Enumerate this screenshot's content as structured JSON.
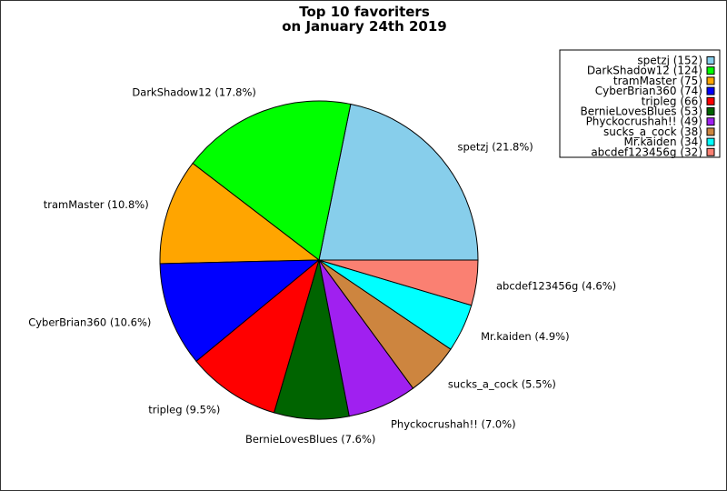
{
  "chart_data": {
    "type": "pie",
    "title": [
      "Top 10 favoriters",
      "on January 24th 2019"
    ],
    "legend_placement": "top-right",
    "slices": [
      {
        "name": "spetzj",
        "value": 152,
        "percent": 21.8,
        "color": "#87ceeb",
        "label": "spetzj (21.8%)",
        "legend": "spetzj (152)"
      },
      {
        "name": "DarkShadow12",
        "value": 124,
        "percent": 17.8,
        "color": "#00ff00",
        "label": "DarkShadow12 (17.8%)",
        "legend": "DarkShadow12 (124)"
      },
      {
        "name": "tramMaster",
        "value": 75,
        "percent": 10.8,
        "color": "#ffa500",
        "label": "tramMaster (10.8%)",
        "legend": "tramMaster (75)"
      },
      {
        "name": "CyberBrian360",
        "value": 74,
        "percent": 10.6,
        "color": "#0000ff",
        "label": "CyberBrian360 (10.6%)",
        "legend": "CyberBrian360 (74)"
      },
      {
        "name": "tripleg",
        "value": 66,
        "percent": 9.5,
        "color": "#ff0000",
        "label": "tripleg (9.5%)",
        "legend": "tripleg (66)"
      },
      {
        "name": "BernieLovesBlues",
        "value": 53,
        "percent": 7.6,
        "color": "#006400",
        "label": "BernieLovesBlues (7.6%)",
        "legend": "BernieLovesBlues (53)"
      },
      {
        "name": "Phyckocrushah!!",
        "value": 49,
        "percent": 7.0,
        "color": "#a020f0",
        "label": "Phyckocrushah!! (7.0%)",
        "legend": "Phyckocrushah!! (49)"
      },
      {
        "name": "sucks_a_cock",
        "value": 38,
        "percent": 5.5,
        "color": "#cd853f",
        "label": "sucks_a_cock (5.5%)",
        "legend": "sucks_a_cock (38)"
      },
      {
        "name": "Mr.kaiden",
        "value": 34,
        "percent": 4.9,
        "color": "#00ffff",
        "label": "Mr.kaiden (4.9%)",
        "legend": "Mr.kaiden (34)"
      },
      {
        "name": "abcdef123456g",
        "value": 32,
        "percent": 4.6,
        "color": "#fa8072",
        "label": "abcdef123456g (4.6%)",
        "legend": "abcdef123456g (32)"
      }
    ]
  }
}
